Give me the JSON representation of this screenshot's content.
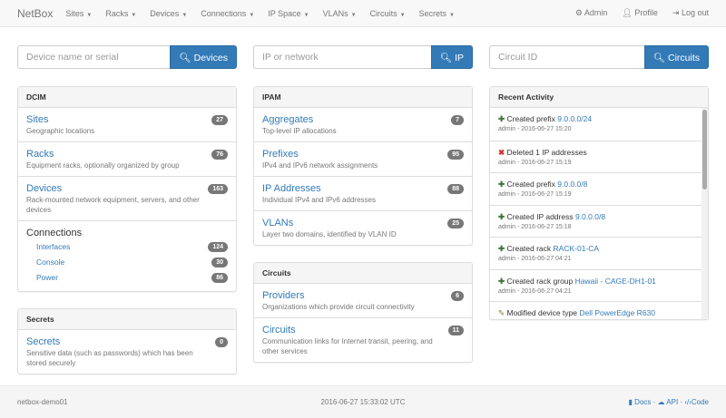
{
  "nav": {
    "brand": "NetBox",
    "menus": [
      "Sites",
      "Racks",
      "Devices",
      "Connections",
      "IP Space",
      "VLANs",
      "Circuits",
      "Secrets"
    ],
    "admin": "Admin",
    "profile": "Profile",
    "logout": "Log out"
  },
  "search": [
    {
      "placeholder": "Device name or serial",
      "button": "Devices"
    },
    {
      "placeholder": "IP or network",
      "button": "IP"
    },
    {
      "placeholder": "Circuit ID",
      "button": "Circuits"
    }
  ],
  "dcim": {
    "title": "DCIM",
    "items": [
      {
        "label": "Sites",
        "desc": "Geographic locations",
        "count": "27"
      },
      {
        "label": "Racks",
        "desc": "Equipment racks, optionally organized by group",
        "count": "76"
      },
      {
        "label": "Devices",
        "desc": "Rack-mounted network equipment, servers, and other devices",
        "count": "163"
      }
    ],
    "connections": {
      "label": "Connections",
      "items": [
        {
          "label": "Interfaces",
          "count": "124"
        },
        {
          "label": "Console",
          "count": "30"
        },
        {
          "label": "Power",
          "count": "86"
        }
      ]
    }
  },
  "secrets": {
    "title": "Secrets",
    "items": [
      {
        "label": "Secrets",
        "desc": "Sensitive data (such as passwords) which has been stored securely",
        "count": "0"
      }
    ]
  },
  "ipam": {
    "title": "IPAM",
    "items": [
      {
        "label": "Aggregates",
        "desc": "Top-level IP allocations",
        "count": "7"
      },
      {
        "label": "Prefixes",
        "desc": "IPv4 and IPv6 network assignments",
        "count": "95"
      },
      {
        "label": "IP Addresses",
        "desc": "Individual IPv4 and IPv6 addresses",
        "count": "88"
      },
      {
        "label": "VLANs",
        "desc": "Layer two domains, identified by VLAN ID",
        "count": "25"
      }
    ]
  },
  "circuits": {
    "title": "Circuits",
    "items": [
      {
        "label": "Providers",
        "desc": "Organizations which provide circuit connectivity",
        "count": "6"
      },
      {
        "label": "Circuits",
        "desc": "Communication links for Internet transit, peering, and other services",
        "count": "11"
      }
    ]
  },
  "activity": {
    "title": "Recent Activity",
    "items": [
      {
        "icon": "plus",
        "action": "Created prefix",
        "link": "9.0.0.0/24",
        "meta": "admin - 2016-06-27 15:20"
      },
      {
        "icon": "remove",
        "action": "Deleted 1 IP addresses",
        "link": "",
        "meta": "admin - 2016-06-27 15:19"
      },
      {
        "icon": "plus",
        "action": "Created prefix",
        "link": "9.0.0.0/8",
        "meta": "admin - 2016-06-27 15:19"
      },
      {
        "icon": "plus",
        "action": "Created IP address",
        "link": "9.0.0.0/8",
        "meta": "admin - 2016-06-27 15:18"
      },
      {
        "icon": "plus",
        "action": "Created rack",
        "link": "RACK-01-CA",
        "meta": "admin - 2016-06-27 04:21"
      },
      {
        "icon": "plus",
        "action": "Created rack group",
        "link": "Hawaii - CAGE-DH1-01",
        "meta": "admin - 2016-06-27 04:21"
      },
      {
        "icon": "pencil",
        "action": "Modified device type",
        "link": "Dell PowerEdge R630",
        "meta": ""
      }
    ]
  },
  "footer": {
    "hostname": "netbox-demo01",
    "time": "2016-06-27 15:33:02 UTC",
    "docs": "Docs",
    "api": "API",
    "code": "Code"
  }
}
